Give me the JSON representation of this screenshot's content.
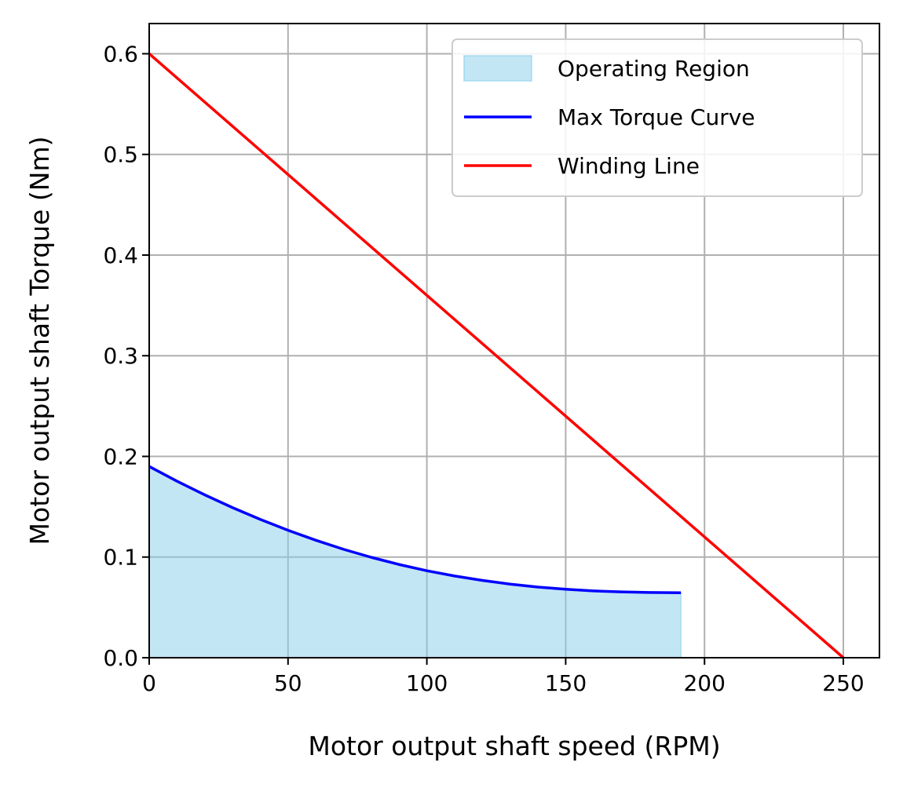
{
  "chart_data": {
    "type": "area",
    "title": "",
    "xlabel": "Motor output shaft speed (RPM)",
    "ylabel": "Motor output shaft Torque (Nm)",
    "xlim": [
      0,
      263
    ],
    "ylim": [
      0,
      0.63
    ],
    "x_ticks": [
      0,
      50,
      100,
      150,
      200,
      250
    ],
    "x_tick_labels": [
      "0",
      "50",
      "100",
      "150",
      "200",
      "250"
    ],
    "y_ticks": [
      0.0,
      0.1,
      0.2,
      0.3,
      0.4,
      0.5,
      0.6
    ],
    "y_tick_labels": [
      "0.0",
      "0.1",
      "0.2",
      "0.3",
      "0.4",
      "0.5",
      "0.6"
    ],
    "grid": true,
    "legend_position": "top-right",
    "series": [
      {
        "name": "Operating Region",
        "kind": "fill",
        "color": "#87ceeb",
        "x": [
          0,
          10,
          20,
          30,
          40,
          50,
          60,
          70,
          80,
          90,
          100,
          110,
          120,
          130,
          140,
          150,
          160,
          170,
          180,
          191.5
        ],
        "y": [
          0.19,
          0.1754,
          0.1618,
          0.1491,
          0.1374,
          0.1266,
          0.1167,
          0.1077,
          0.0997,
          0.0926,
          0.0864,
          0.0812,
          0.0768,
          0.0731,
          0.0702,
          0.068,
          0.0664,
          0.0654,
          0.0648,
          0.0645
        ]
      },
      {
        "name": "Max Torque Curve",
        "kind": "line",
        "color": "#0000ff",
        "x": [
          0,
          10,
          20,
          30,
          40,
          50,
          60,
          70,
          80,
          90,
          100,
          110,
          120,
          130,
          140,
          150,
          160,
          170,
          180,
          191.5
        ],
        "y": [
          0.19,
          0.1754,
          0.1618,
          0.1491,
          0.1374,
          0.1266,
          0.1167,
          0.1077,
          0.0997,
          0.0926,
          0.0864,
          0.0812,
          0.0768,
          0.0731,
          0.0702,
          0.068,
          0.0664,
          0.0654,
          0.0648,
          0.0645
        ]
      },
      {
        "name": "Winding Line",
        "kind": "line",
        "color": "#ff0000",
        "x": [
          0,
          250
        ],
        "y": [
          0.6,
          0.0
        ]
      }
    ]
  }
}
